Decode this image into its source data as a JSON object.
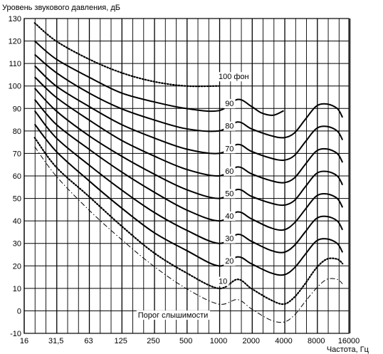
{
  "chart_data": {
    "type": "line",
    "title": "",
    "ylabel": "Уровень звукового давления, дБ",
    "xlabel": "Частота, Гц",
    "x_scale": "log",
    "ylim": [
      -10,
      130
    ],
    "xlim": [
      16,
      16000
    ],
    "grid": true,
    "y_ticks": [
      "-10",
      "0",
      "10",
      "20",
      "30",
      "40",
      "50",
      "60",
      "70",
      "80",
      "90",
      "100",
      "110",
      "120",
      "130"
    ],
    "x_tick_labels": [
      {
        "f": 16,
        "label": "16"
      },
      {
        "f": 31.5,
        "label": "31,5"
      },
      {
        "f": 63,
        "label": "63"
      },
      {
        "f": 125,
        "label": "125"
      },
      {
        "f": 250,
        "label": "250"
      },
      {
        "f": 500,
        "label": "500"
      },
      {
        "f": 1000,
        "label": "1000"
      },
      {
        "f": 2000,
        "label": "2000"
      },
      {
        "f": 4000,
        "label": "4000"
      },
      {
        "f": 8000,
        "label": "8000"
      },
      {
        "f": 16000,
        "label": "16000"
      }
    ],
    "series": [
      {
        "label": "100 фон",
        "style": "dotted",
        "label_at": [
          1000,
          103
        ],
        "points": [
          [
            20,
            128
          ],
          [
            31.5,
            120
          ],
          [
            63,
            112
          ],
          [
            125,
            106
          ],
          [
            250,
            102
          ],
          [
            500,
            100
          ],
          [
            1000,
            100
          ]
        ]
      },
      {
        "label": "90",
        "style": "solid",
        "label_at": [
          1150,
          91
        ],
        "points": [
          [
            20,
            120
          ],
          [
            31.5,
            112
          ],
          [
            63,
            104
          ],
          [
            125,
            97
          ],
          [
            250,
            93
          ],
          [
            500,
            90
          ],
          [
            1000,
            89
          ],
          [
            1500,
            94
          ],
          [
            2000,
            91
          ],
          [
            2500,
            88
          ],
          [
            3200,
            87
          ],
          [
            4000,
            89
          ]
        ]
      },
      {
        "label": "80",
        "style": "solid",
        "label_at": [
          1150,
          81
        ],
        "points": [
          [
            20,
            114
          ],
          [
            31.5,
            106
          ],
          [
            63,
            97
          ],
          [
            125,
            90
          ],
          [
            250,
            85
          ],
          [
            500,
            81
          ],
          [
            1000,
            80
          ],
          [
            1500,
            84
          ],
          [
            2000,
            81
          ],
          [
            3000,
            78
          ],
          [
            4000,
            77
          ],
          [
            5000,
            79
          ],
          [
            6300,
            85
          ],
          [
            8000,
            91
          ],
          [
            10000,
            92
          ],
          [
            12500,
            90
          ],
          [
            14000,
            86
          ]
        ]
      },
      {
        "label": "70",
        "style": "solid",
        "label_at": [
          1150,
          71
        ],
        "points": [
          [
            20,
            109
          ],
          [
            31.5,
            100
          ],
          [
            63,
            91
          ],
          [
            125,
            83
          ],
          [
            250,
            77
          ],
          [
            500,
            72
          ],
          [
            1000,
            70
          ],
          [
            1500,
            74
          ],
          [
            2000,
            71
          ],
          [
            3000,
            68
          ],
          [
            4000,
            67
          ],
          [
            5000,
            69
          ],
          [
            6300,
            75
          ],
          [
            8000,
            81
          ],
          [
            10000,
            82
          ],
          [
            12500,
            80
          ],
          [
            14000,
            76
          ]
        ]
      },
      {
        "label": "60",
        "style": "solid",
        "label_at": [
          1150,
          61
        ],
        "points": [
          [
            20,
            104
          ],
          [
            31.5,
            95
          ],
          [
            63,
            85
          ],
          [
            125,
            76
          ],
          [
            250,
            69
          ],
          [
            500,
            63
          ],
          [
            1000,
            60
          ],
          [
            1500,
            64
          ],
          [
            2000,
            61
          ],
          [
            3000,
            58
          ],
          [
            4000,
            57
          ],
          [
            5000,
            59
          ],
          [
            6300,
            65
          ],
          [
            8000,
            71
          ],
          [
            10000,
            72
          ],
          [
            12500,
            70
          ],
          [
            14000,
            66
          ]
        ]
      },
      {
        "label": "50",
        "style": "solid",
        "label_at": [
          1150,
          51
        ],
        "points": [
          [
            20,
            99
          ],
          [
            31.5,
            89
          ],
          [
            63,
            78
          ],
          [
            125,
            69
          ],
          [
            250,
            61
          ],
          [
            500,
            54
          ],
          [
            1000,
            50
          ],
          [
            1500,
            54
          ],
          [
            2000,
            51
          ],
          [
            3000,
            48
          ],
          [
            4000,
            47
          ],
          [
            5000,
            49
          ],
          [
            6300,
            55
          ],
          [
            8000,
            61
          ],
          [
            10000,
            62
          ],
          [
            12500,
            60
          ],
          [
            14000,
            56
          ]
        ]
      },
      {
        "label": "40",
        "style": "solid",
        "label_at": [
          1150,
          41
        ],
        "points": [
          [
            20,
            94
          ],
          [
            31.5,
            83
          ],
          [
            63,
            72
          ],
          [
            125,
            62
          ],
          [
            250,
            53
          ],
          [
            500,
            45
          ],
          [
            1000,
            40
          ],
          [
            1500,
            44
          ],
          [
            2000,
            41
          ],
          [
            3000,
            37
          ],
          [
            4000,
            36
          ],
          [
            5000,
            39
          ],
          [
            6300,
            45
          ],
          [
            8000,
            51
          ],
          [
            10000,
            52
          ],
          [
            12500,
            50
          ],
          [
            14000,
            46
          ]
        ]
      },
      {
        "label": "30",
        "style": "solid",
        "label_at": [
          1150,
          31
        ],
        "points": [
          [
            20,
            89
          ],
          [
            31.5,
            77
          ],
          [
            63,
            65
          ],
          [
            125,
            54
          ],
          [
            250,
            44
          ],
          [
            500,
            36
          ],
          [
            1000,
            30
          ],
          [
            1500,
            34
          ],
          [
            2000,
            31
          ],
          [
            3000,
            27
          ],
          [
            4000,
            26
          ],
          [
            5000,
            29
          ],
          [
            6300,
            35
          ],
          [
            8000,
            41
          ],
          [
            10000,
            42
          ],
          [
            12500,
            40
          ],
          [
            14000,
            36
          ]
        ]
      },
      {
        "label": "20",
        "style": "solid",
        "label_at": [
          1150,
          21
        ],
        "points": [
          [
            20,
            83
          ],
          [
            31.5,
            71
          ],
          [
            63,
            58
          ],
          [
            125,
            46
          ],
          [
            250,
            35
          ],
          [
            500,
            27
          ],
          [
            1000,
            20
          ],
          [
            1500,
            24
          ],
          [
            2000,
            21
          ],
          [
            3000,
            17
          ],
          [
            4000,
            16
          ],
          [
            5000,
            19
          ],
          [
            6300,
            25
          ],
          [
            8000,
            31
          ],
          [
            10000,
            32
          ],
          [
            12500,
            30
          ],
          [
            14000,
            26
          ]
        ]
      },
      {
        "label": "10",
        "style": "dotted",
        "label_at": [
          1000,
          12
        ],
        "points": [
          [
            20,
            77
          ],
          [
            31.5,
            64
          ],
          [
            63,
            51
          ],
          [
            125,
            38
          ],
          [
            250,
            26
          ],
          [
            500,
            17
          ],
          [
            1000,
            10
          ],
          [
            1500,
            14
          ],
          [
            2000,
            10
          ],
          [
            3000,
            5
          ],
          [
            4000,
            3
          ],
          [
            5000,
            6
          ],
          [
            6300,
            12
          ],
          [
            8000,
            19
          ],
          [
            10000,
            23
          ],
          [
            12500,
            23
          ],
          [
            14000,
            21
          ]
        ]
      },
      {
        "label": "Порог слышимости",
        "style": "dashdot",
        "label_at": [
          180,
          -3
        ],
        "points": [
          [
            20,
            73
          ],
          [
            31.5,
            60
          ],
          [
            63,
            45
          ],
          [
            125,
            32
          ],
          [
            250,
            20
          ],
          [
            500,
            10
          ],
          [
            1000,
            3
          ],
          [
            1500,
            5
          ],
          [
            2000,
            1
          ],
          [
            3000,
            -4
          ],
          [
            4000,
            -5
          ],
          [
            5000,
            -2
          ],
          [
            6300,
            4
          ],
          [
            8000,
            10
          ],
          [
            10000,
            14
          ],
          [
            12500,
            14
          ],
          [
            14000,
            12
          ]
        ]
      }
    ]
  }
}
